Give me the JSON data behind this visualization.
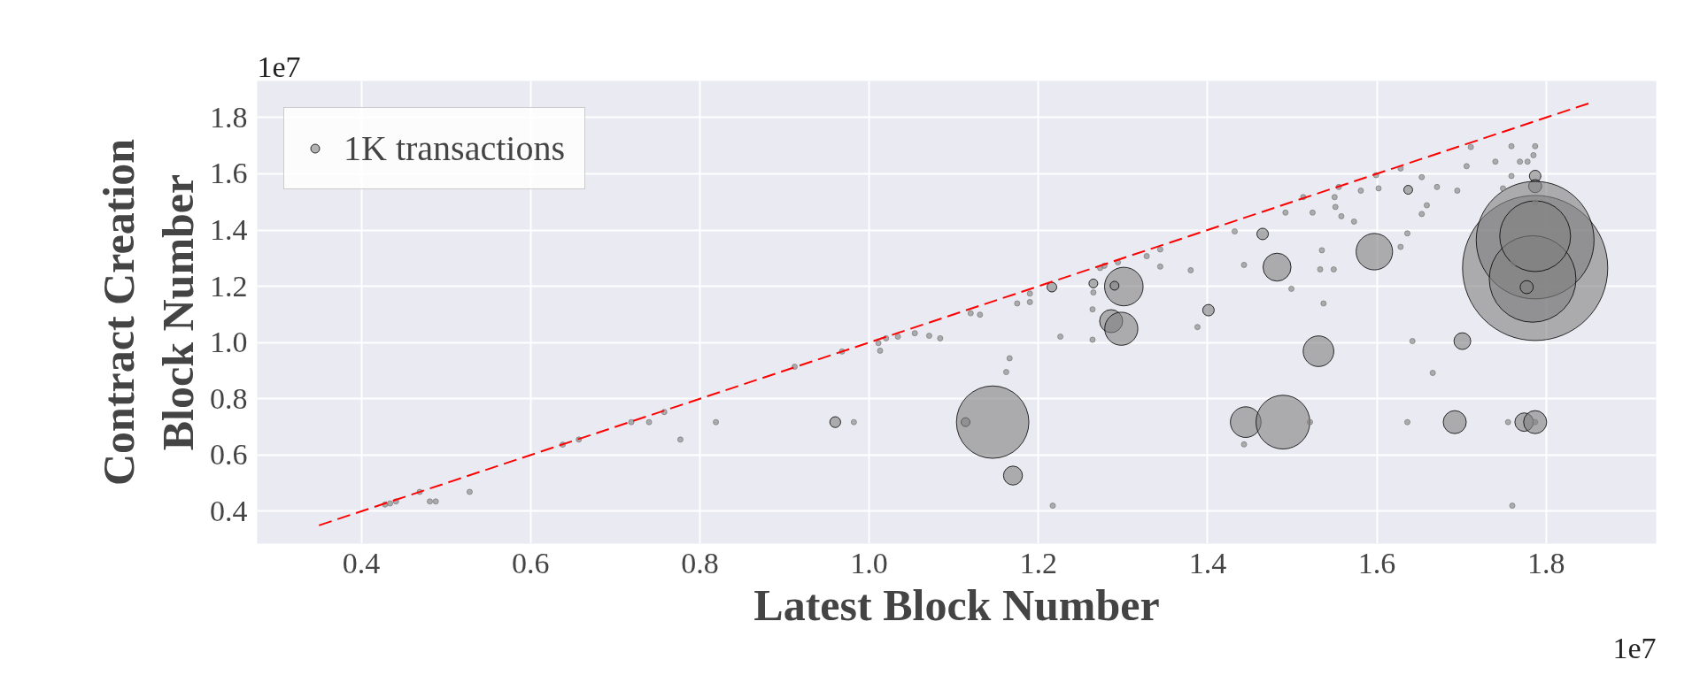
{
  "chart_data": {
    "type": "bubble",
    "xlabel": "Latest Block Number",
    "ylabel": "Contract Creation\nBlock Number",
    "annotations": [
      "1e7",
      "1e7"
    ],
    "xlim": [
      0.277,
      1.93
    ],
    "ylim": [
      0.285,
      1.93
    ],
    "xticks": [
      0.4,
      0.6,
      0.8,
      {
        "value": 1.0,
        "label": "1.0"
      },
      1.2,
      1.4,
      1.6,
      1.8
    ],
    "yticks": [
      0.4,
      0.6,
      0.8,
      {
        "value": 1.0,
        "label": "1.0"
      },
      1.2,
      1.4,
      1.6,
      1.8
    ],
    "grid": true,
    "size_legend": [
      {
        "value": 1,
        "label": "1K transactions"
      }
    ],
    "series": [
      {
        "color": "#808080",
        "x": [
          0.96,
          1.114,
          1.146,
          1.17,
          1.216,
          1.265,
          1.301,
          1.29,
          1.286,
          1.298,
          1.401,
          1.465,
          1.482,
          1.445,
          1.489,
          1.531,
          1.597,
          1.637,
          1.692,
          1.701,
          1.787,
          1.787,
          1.787,
          1.787,
          1.784,
          1.787,
          1.777,
          1.774,
          1.787
        ],
        "values": [
          0.717,
          0.717,
          0.717,
          0.527,
          1.197,
          1.21,
          1.199,
          1.202,
          1.076,
          1.049,
          1.115,
          1.386,
          1.268,
          0.717,
          0.717,
          0.969,
          1.323,
          1.543,
          0.717,
          1.005,
          1.592,
          1.556,
          1.265,
          1.364,
          1.226,
          1.378,
          1.197,
          0.717,
          0.717
        ],
        "sizes": [
          1.5,
          1.0,
          67,
          4.6,
          1.2,
          1.0,
          19,
          1.0,
          6.8,
          14,
          1.7,
          1.7,
          10,
          12,
          37,
          12,
          17,
          1.0,
          6.8,
          3.6,
          1.7,
          2.2,
          269,
          177,
          96,
          64,
          2.2,
          4.4,
          6.8
        ]
      },
      {
        "type": "scatter",
        "color": "#808080",
        "x": [
          0.428,
          0.434,
          0.441,
          0.469,
          0.481,
          0.488,
          0.528,
          0.638,
          0.657,
          0.719,
          0.74,
          0.758,
          0.777,
          0.819,
          0.982,
          0.912,
          0.968,
          1.011,
          1.02,
          1.034,
          1.013,
          1.054,
          1.071,
          1.084,
          1.12,
          1.131,
          1.166,
          1.162,
          1.217,
          1.226,
          1.19,
          1.175,
          1.19,
          1.265,
          1.264,
          1.264,
          1.278,
          1.294,
          1.273,
          1.328,
          1.344,
          1.344,
          1.38,
          1.388,
          1.432,
          1.443,
          1.499,
          1.443,
          1.521,
          1.535,
          1.533,
          1.549,
          1.537,
          1.551,
          1.55,
          1.555,
          1.513,
          1.492,
          1.524,
          1.573,
          1.558,
          1.581,
          1.599,
          1.602,
          1.628,
          1.653,
          1.659,
          1.653,
          1.671,
          1.695,
          1.636,
          1.628,
          1.642,
          1.666,
          1.636,
          1.74,
          1.759,
          1.769,
          1.778,
          1.787,
          1.785,
          1.759,
          1.749,
          1.787,
          1.761,
          1.755,
          1.787,
          1.76,
          1.706,
          1.711
        ],
        "values": [
          0.424,
          0.428,
          0.435,
          0.469,
          0.435,
          0.435,
          0.469,
          0.637,
          0.655,
          0.717,
          0.717,
          0.753,
          0.655,
          0.717,
          0.717,
          0.914,
          0.968,
          0.998,
          1.015,
          1.021,
          0.971,
          1.033,
          1.024,
          1.015,
          1.104,
          1.099,
          0.944,
          0.895,
          0.42,
          1.021,
          1.144,
          1.139,
          1.174,
          1.178,
          1.118,
          1.01,
          1.273,
          1.285,
          1.265,
          1.307,
          1.331,
          1.27,
          1.257,
          1.055,
          1.395,
          1.276,
          1.191,
          0.638,
          0.717,
          1.328,
          1.26,
          1.26,
          1.139,
          1.482,
          1.517,
          1.553,
          1.517,
          1.462,
          1.462,
          1.43,
          1.449,
          1.54,
          1.595,
          1.548,
          1.619,
          1.457,
          1.488,
          1.588,
          1.553,
          1.54,
          1.388,
          1.34,
          1.005,
          0.892,
          0.717,
          1.643,
          1.698,
          1.643,
          1.643,
          1.698,
          1.666,
          1.592,
          1.548,
          1.498,
          1.281,
          0.717,
          0.717,
          0.42,
          1.627,
          1.695
        ]
      },
      {
        "type": "line",
        "color": "#ff0000",
        "line_style": "dashed",
        "x": [
          0.35,
          1.85
        ],
        "values": [
          0.35,
          1.85
        ]
      }
    ]
  }
}
